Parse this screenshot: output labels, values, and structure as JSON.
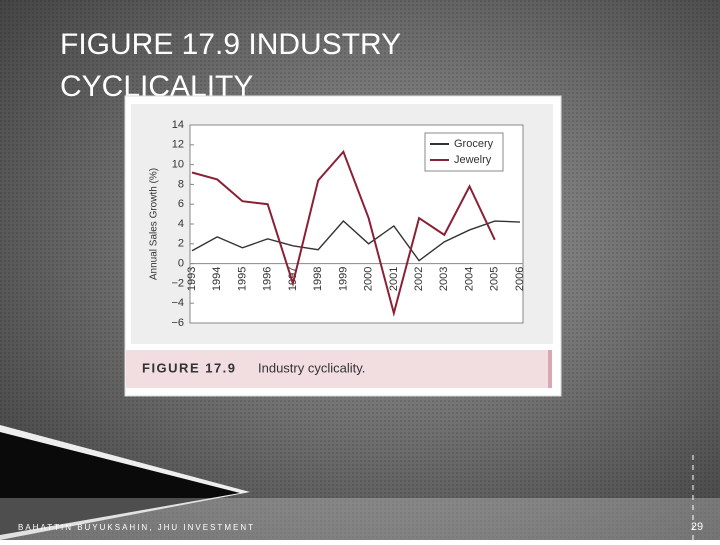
{
  "slide_title": "FIGURE 17.9 INDUSTRY CYCLICALITY",
  "footer": "BAHATTIN BUYUKSAHIN, JHU INVESTMENT",
  "page_number": "29",
  "chart_data": {
    "type": "line",
    "y_label": "Annual Sales Growth (%)",
    "caption_label": "FIGURE 17.9",
    "caption_text": "Industry cyclicality.",
    "categories": [
      "1993",
      "1994",
      "1995",
      "1996",
      "1997",
      "1998",
      "1999",
      "2000",
      "2001",
      "2002",
      "2003",
      "2004",
      "2005",
      "2006"
    ],
    "series": [
      {
        "name": "Grocery",
        "color": "#333333",
        "values": [
          1.3,
          2.7,
          1.6,
          2.5,
          1.8,
          1.4,
          4.3,
          2.0,
          3.8,
          0.3,
          2.2,
          3.4,
          4.3,
          4.2
        ]
      },
      {
        "name": "Jewelry",
        "color": "#8b2035",
        "values": [
          9.2,
          8.5,
          6.3,
          6.0,
          -2.0,
          8.4,
          11.3,
          4.6,
          -5.0,
          4.6,
          2.9,
          7.8,
          2.4,
          null
        ]
      }
    ],
    "ylim": [
      -6,
      14
    ],
    "yticks": [
      {
        "value": -6,
        "label": "−6"
      },
      {
        "value": -4,
        "label": "−4"
      },
      {
        "value": -2,
        "label": "−2"
      },
      0,
      2,
      4,
      6,
      8,
      10,
      12,
      14
    ],
    "grid": false,
    "legend": "upper right"
  }
}
